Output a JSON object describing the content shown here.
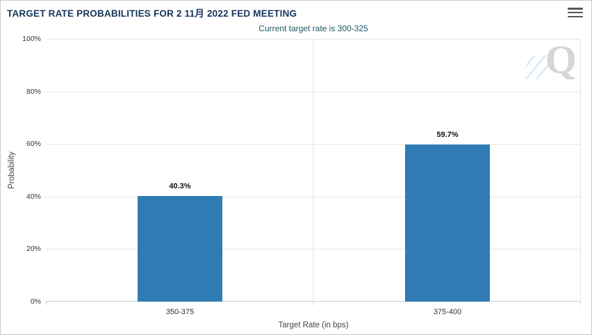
{
  "header": {
    "title": "TARGET RATE PROBABILITIES FOR 2 11月 2022 FED MEETING",
    "subtitle": "Current target rate is 300-325",
    "menu_icon": "hamburger-menu-icon"
  },
  "watermark": {
    "letter": "Q"
  },
  "colors": {
    "title": "#16365c",
    "subtitle": "#1e5564",
    "bar": "#2f7cb5",
    "grid": "#e6e6e6",
    "axis": "#c6cfda",
    "data_label": "#111111"
  },
  "chart_data": {
    "type": "bar",
    "title": "TARGET RATE PROBABILITIES FOR 2 11月 2022 FED MEETING",
    "subtitle": "Current target rate is 300-325",
    "categories": [
      "350-375",
      "375-400"
    ],
    "values": [
      40.3,
      59.7
    ],
    "value_labels": [
      "40.3%",
      "59.7%"
    ],
    "xlabel": "Target Rate (in bps)",
    "ylabel": "Probability",
    "ylim": [
      0,
      100
    ],
    "yticks": [
      0,
      20,
      40,
      60,
      80,
      100
    ],
    "ytick_labels": [
      "0%",
      "20%",
      "40%",
      "60%",
      "80%",
      "100%"
    ],
    "grid": true,
    "legend": "none"
  }
}
